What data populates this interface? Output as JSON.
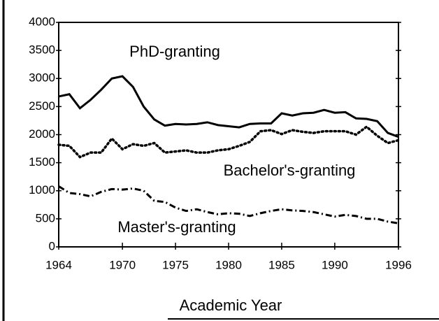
{
  "chart_data": {
    "type": "line",
    "xlabel": "Academic Year",
    "x": [
      1964,
      1965,
      1966,
      1967,
      1968,
      1969,
      1970,
      1971,
      1972,
      1973,
      1974,
      1975,
      1976,
      1977,
      1978,
      1979,
      1980,
      1981,
      1982,
      1983,
      1984,
      1985,
      1986,
      1987,
      1988,
      1989,
      1990,
      1991,
      1992,
      1993,
      1994,
      1995,
      1996
    ],
    "series": [
      {
        "name": "PhD-granting",
        "color": "#000000",
        "dash": "solid",
        "values": [
          2680,
          2720,
          2470,
          2620,
          2800,
          3000,
          3040,
          2850,
          2500,
          2270,
          2160,
          2190,
          2180,
          2190,
          2220,
          2170,
          2150,
          2130,
          2190,
          2200,
          2200,
          2380,
          2340,
          2380,
          2390,
          2440,
          2390,
          2400,
          2290,
          2280,
          2240,
          2030,
          1960
        ]
      },
      {
        "name": "Bachelor's-granting",
        "color": "#000000",
        "dash": "dotted",
        "values": [
          1820,
          1800,
          1600,
          1680,
          1680,
          1930,
          1740,
          1830,
          1800,
          1850,
          1680,
          1700,
          1720,
          1680,
          1680,
          1720,
          1740,
          1800,
          1870,
          2060,
          2080,
          2010,
          2080,
          2050,
          2030,
          2060,
          2060,
          2060,
          2000,
          2140,
          1980,
          1850,
          1900
        ]
      },
      {
        "name": "Master's-granting",
        "color": "#000000",
        "dash": "dashdot",
        "values": [
          1080,
          960,
          940,
          900,
          980,
          1030,
          1020,
          1040,
          1000,
          820,
          800,
          700,
          640,
          670,
          620,
          580,
          600,
          590,
          550,
          600,
          640,
          670,
          650,
          640,
          620,
          580,
          540,
          570,
          550,
          500,
          500,
          450,
          420
        ]
      }
    ],
    "xlim": [
      1964,
      1996
    ],
    "xticks": [
      1964,
      1970,
      1975,
      1980,
      1985,
      1990,
      1996
    ],
    "ylim": [
      0,
      4000
    ],
    "yticks": [
      0,
      500,
      1000,
      1500,
      2000,
      2500,
      3000,
      3500,
      4000
    ]
  }
}
